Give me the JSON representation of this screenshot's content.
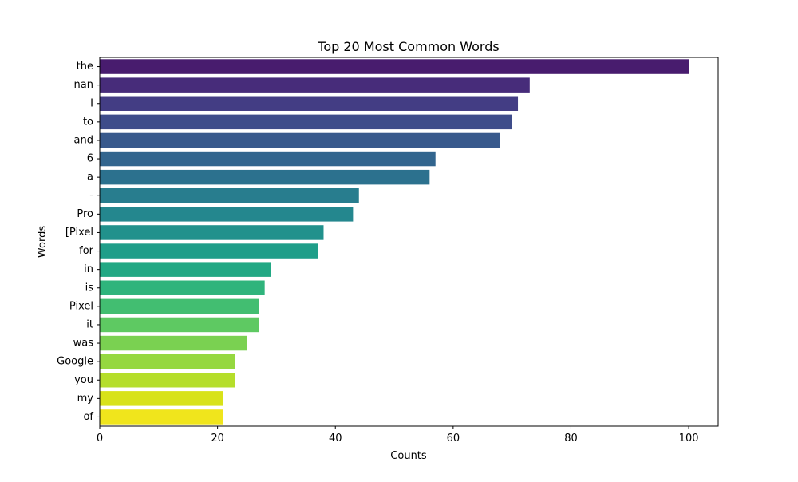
{
  "chart_data": {
    "type": "bar",
    "orientation": "horizontal",
    "title": "Top 20 Most Common Words",
    "xlabel": "Counts",
    "ylabel": "Words",
    "xlim": [
      0,
      105
    ],
    "xticks": [
      0,
      20,
      40,
      60,
      80,
      100
    ],
    "grid": false,
    "categories": [
      "the",
      "nan",
      "I",
      "to",
      "and",
      "6",
      "a",
      "-",
      "Pro",
      "[Pixel",
      "for",
      "in",
      "is",
      "Pixel",
      "it",
      "was",
      "Google",
      "you",
      "my",
      "of"
    ],
    "values": [
      100,
      73,
      71,
      70,
      68,
      57,
      56,
      44,
      43,
      38,
      37,
      29,
      28,
      27,
      27,
      25,
      23,
      23,
      21,
      21
    ],
    "colors": [
      "#481c6e",
      "#472c7a",
      "#433d84",
      "#3e4c8a",
      "#38598c",
      "#32658e",
      "#2c718e",
      "#287d8e",
      "#24878e",
      "#21918c",
      "#1f9e89",
      "#22a884",
      "#2fb47c",
      "#42be71",
      "#5ec962",
      "#7ad151",
      "#95d840",
      "#b5de2b",
      "#d8e219",
      "#f0e51c"
    ]
  }
}
